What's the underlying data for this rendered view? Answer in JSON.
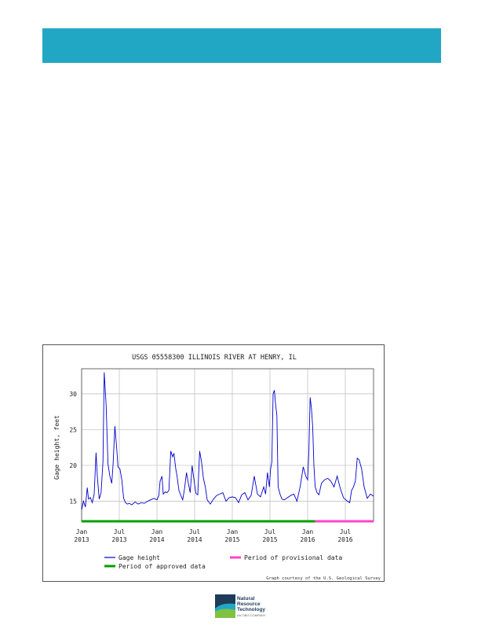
{
  "colors": {
    "header_band": "#21a7c4",
    "gage_line": "#0000cc",
    "approved": "#00a000",
    "provisional": "#ff44cc",
    "grid": "#bbbbbb"
  },
  "logo": {
    "line1": "Natural",
    "line2": "Resource",
    "line3": "Technology",
    "line4": "AN OBG COMPANY"
  },
  "chart_data": {
    "type": "line",
    "title": "USGS 05558300 ILLINOIS RIVER AT HENRY, IL",
    "ylabel": "Gage height, feet",
    "xlabel": "",
    "ylim": [
      12.2,
      33.5
    ],
    "yticks": [
      15,
      20,
      25,
      30
    ],
    "xlim": [
      0,
      46.5
    ],
    "x_unit": "months since Jan 2013",
    "xticks": [
      {
        "x": 0,
        "line1": "Jan",
        "line2": "2013"
      },
      {
        "x": 6,
        "line1": "Jul",
        "line2": "2013"
      },
      {
        "x": 12,
        "line1": "Jan",
        "line2": "2014"
      },
      {
        "x": 18,
        "line1": "Jul",
        "line2": "2014"
      },
      {
        "x": 24,
        "line1": "Jan",
        "line2": "2015"
      },
      {
        "x": 30,
        "line1": "Jul",
        "line2": "2015"
      },
      {
        "x": 36,
        "line1": "Jan",
        "line2": "2016"
      },
      {
        "x": 42,
        "line1": "Jul",
        "line2": "2016"
      }
    ],
    "grid": true,
    "series": [
      {
        "name": "Gage height",
        "x": [
          0.0,
          0.3,
          0.6,
          0.9,
          1.1,
          1.4,
          1.7,
          2.0,
          2.3,
          2.5,
          2.8,
          3.1,
          3.4,
          3.6,
          3.9,
          4.2,
          4.5,
          4.8,
          5.0,
          5.3,
          5.6,
          5.8,
          6.1,
          6.4,
          6.7,
          7.0,
          7.3,
          7.6,
          8.0,
          8.5,
          9.0,
          9.5,
          10.0,
          10.5,
          11.0,
          11.5,
          12.0,
          12.3,
          12.5,
          12.8,
          13.0,
          13.3,
          13.6,
          13.9,
          14.2,
          14.5,
          14.7,
          15.0,
          15.2,
          15.5,
          15.8,
          16.1,
          16.4,
          16.7,
          17.0,
          17.3,
          17.6,
          17.9,
          18.2,
          18.5,
          18.8,
          19.1,
          19.4,
          19.7,
          20.0,
          20.5,
          21.0,
          21.5,
          22.0,
          22.5,
          23.0,
          23.5,
          24.0,
          24.5,
          25.0,
          25.5,
          26.0,
          26.5,
          27.0,
          27.5,
          28.0,
          28.5,
          29.0,
          29.3,
          29.6,
          29.9,
          30.1,
          30.3,
          30.5,
          30.7,
          30.9,
          31.1,
          31.3,
          31.6,
          31.9,
          32.3,
          32.8,
          33.3,
          33.8,
          34.3,
          34.8,
          35.3,
          35.7,
          36.0,
          36.2,
          36.4,
          36.6,
          36.8,
          37.0,
          37.2,
          37.5,
          37.8,
          38.2,
          38.7,
          39.2,
          39.7,
          40.2,
          40.7,
          41.2,
          41.7,
          42.2,
          42.7,
          43.0,
          43.3,
          43.6,
          43.9,
          44.2,
          44.6,
          45.0,
          45.5,
          46.0,
          46.5
        ],
        "y": [
          13.8,
          15.0,
          14.2,
          16.9,
          15.3,
          15.5,
          14.8,
          16.0,
          21.8,
          18.5,
          15.3,
          16.2,
          20.5,
          33.0,
          28.5,
          20.2,
          18.5,
          17.5,
          20.0,
          25.5,
          22.2,
          19.8,
          19.5,
          18.0,
          15.4,
          14.8,
          14.6,
          14.7,
          14.5,
          14.9,
          14.6,
          14.8,
          14.7,
          15.0,
          15.2,
          15.4,
          15.2,
          15.8,
          17.8,
          18.5,
          16.0,
          16.3,
          16.2,
          16.5,
          22.0,
          21.2,
          21.7,
          19.5,
          18.5,
          16.5,
          15.8,
          15.2,
          16.8,
          19.0,
          17.5,
          16.2,
          20.0,
          18.0,
          16.1,
          15.9,
          22.0,
          20.5,
          18.2,
          17.0,
          15.2,
          14.6,
          15.3,
          15.8,
          16.0,
          16.2,
          15.0,
          15.5,
          15.6,
          15.5,
          14.8,
          15.9,
          16.2,
          15.2,
          15.8,
          18.5,
          16.0,
          15.6,
          17.0,
          16.0,
          19.0,
          17.0,
          19.5,
          20.5,
          30.0,
          30.5,
          28.5,
          27.0,
          17.0,
          16.0,
          15.3,
          15.2,
          15.5,
          15.8,
          16.0,
          15.0,
          17.0,
          19.8,
          18.5,
          18.0,
          22.0,
          29.5,
          28.0,
          25.5,
          20.0,
          17.0,
          16.2,
          15.9,
          17.5,
          18.0,
          18.2,
          17.8,
          17.0,
          18.5,
          16.8,
          15.5,
          15.1,
          14.8,
          16.5,
          17.0,
          17.8,
          21.0,
          20.8,
          19.5,
          17.0,
          15.4,
          16.0,
          15.7
        ]
      }
    ],
    "approved_period": [
      0,
      37.2
    ],
    "provisional_period": [
      37.2,
      46.5
    ],
    "legend": [
      {
        "label": "Gage height",
        "style": "line",
        "color": "#0000cc"
      },
      {
        "label": "Period of provisional data",
        "style": "bar",
        "color": "#ff44cc"
      },
      {
        "label": "Period of approved data",
        "style": "bar",
        "color": "#00a000"
      }
    ],
    "credit": "Graph courtesy of the U.S. Geological Survey"
  }
}
